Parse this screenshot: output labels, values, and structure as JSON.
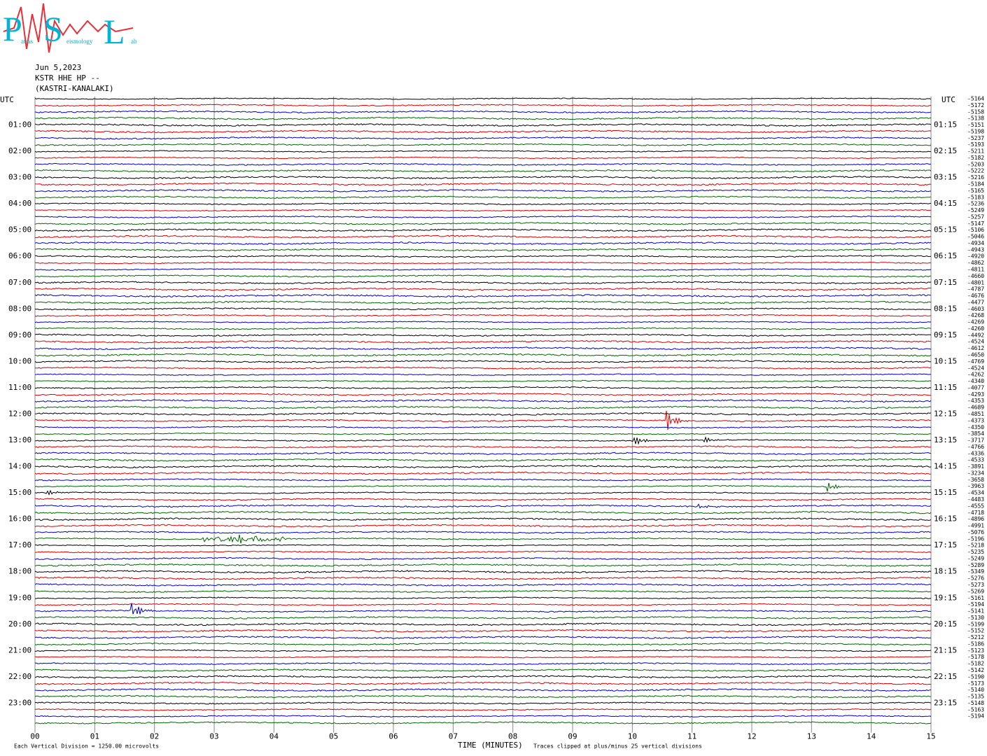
{
  "logo": {
    "letters": [
      "P",
      "S",
      "L"
    ],
    "words": [
      "atras",
      "eismology",
      "ab"
    ]
  },
  "header": {
    "date": "Jun 5,2023",
    "station": "KSTR HHE HP --",
    "location": "(KASTRI-KANALAKI)"
  },
  "utc_left": "UTC",
  "utc_right": "UTC",
  "hours_left": [
    "01:00",
    "02:00",
    "03:00",
    "04:00",
    "05:00",
    "06:00",
    "07:00",
    "08:00",
    "09:00",
    "10:00",
    "11:00",
    "12:00",
    "13:00",
    "14:00",
    "15:00",
    "16:00",
    "17:00",
    "18:00",
    "19:00",
    "20:00",
    "21:00",
    "22:00",
    "23:00"
  ],
  "hours_right": [
    "01:15",
    "02:15",
    "03:15",
    "04:15",
    "05:15",
    "06:15",
    "07:15",
    "08:15",
    "09:15",
    "10:15",
    "11:15",
    "12:15",
    "13:15",
    "14:15",
    "15:15",
    "16:15",
    "17:15",
    "18:15",
    "19:15",
    "20:15",
    "21:15",
    "22:15",
    "23:15"
  ],
  "trace_offsets": [
    "-5164",
    "-5172",
    "-5158",
    "-5138",
    "-5151",
    "-5198",
    "-5237",
    "-5193",
    "-5211",
    "-5182",
    "-5203",
    "-5222",
    "-5216",
    "-5184",
    "-5165",
    "-5183",
    "-5236",
    "-5249",
    "-5257",
    "-5147",
    "-5106",
    "-5046",
    "-4934",
    "-4943",
    "-4920",
    "-4862",
    "-4811",
    "-4660",
    "-4801",
    "-4787",
    "-4676",
    "-4477",
    "-4603",
    "-4268",
    "-4269",
    "-4260",
    "-4492",
    "-4524",
    "-4612",
    "-4650",
    "-4769",
    "-4524",
    "-4262",
    "-4340",
    "-4077",
    "-4293",
    "-4353",
    "-4689",
    "-4851",
    "-4373",
    "-4350",
    "-3854",
    "-3717",
    "-4766",
    "-4336",
    "-4533",
    "-3891",
    "-3234",
    "-3658",
    "-3963",
    "-4534",
    "-4483",
    "-4555",
    "-4718",
    "-4896",
    "-4991",
    "-5076",
    "-5196",
    "-5218",
    "-5235",
    "-5249",
    "-5289",
    "-5349",
    "-5276",
    "-5273",
    "-5269",
    "-5161",
    "-5194",
    "-5141",
    "-5130",
    "-5199",
    "-5152",
    "-5212",
    "-5186",
    "-5123",
    "-5178",
    "-5182",
    "-5142",
    "-5190",
    "-5173",
    "-5140",
    "-5135",
    "-5148",
    "-5163",
    "-5194"
  ],
  "minutes": [
    "00",
    "01",
    "02",
    "03",
    "04",
    "05",
    "06",
    "07",
    "08",
    "09",
    "10",
    "11",
    "12",
    "13",
    "14",
    "15"
  ],
  "footer": {
    "axis_title": "TIME (MINUTES)",
    "scale_note": "Each Vertical Division = 1250.00 microvolts",
    "clip_note": "Traces clipped at plus/minus 25 vertical divisions"
  }
}
